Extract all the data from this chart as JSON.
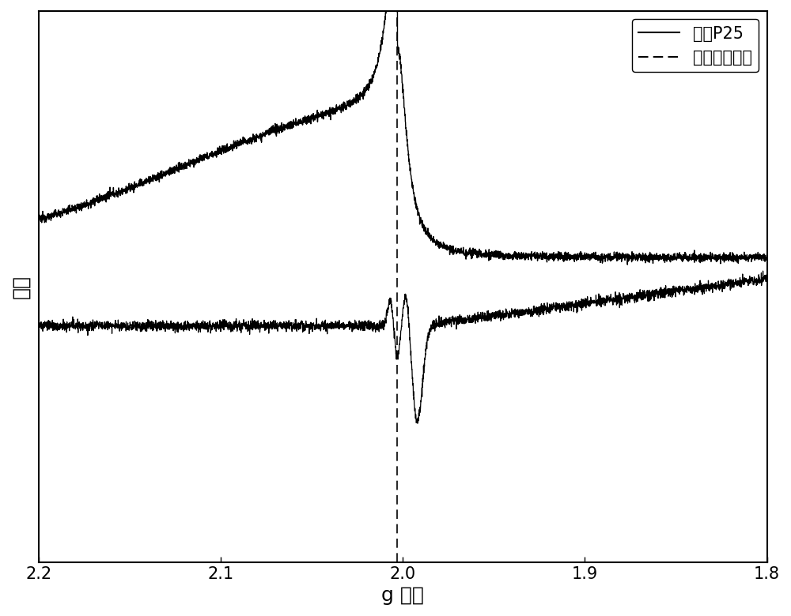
{
  "xlabel": "g 因子",
  "ylabel": "强度",
  "xlim": [
    2.2,
    1.8
  ],
  "xticks": [
    2.2,
    2.1,
    2.0,
    1.9,
    1.8
  ],
  "legend_solid": "商业P25",
  "legend_dashed": "介孔二氧化馒",
  "vline_x": 2.003,
  "background_color": "#ffffff",
  "line_color": "#000000",
  "fontsize_axis": 18,
  "fontsize_legend": 15,
  "fontsize_tick": 15,
  "p25_baseline": 0.6,
  "meso_baseline": 0.45,
  "ylim": [
    0.0,
    1.05
  ]
}
